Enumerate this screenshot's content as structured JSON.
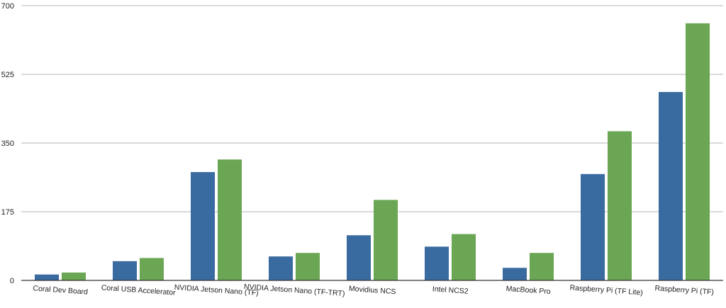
{
  "chart_data": {
    "type": "bar",
    "title": "",
    "xlabel": "",
    "ylabel": "",
    "ylim": [
      0,
      700
    ],
    "yticks": [
      0,
      175,
      350,
      525,
      700
    ],
    "grid": true,
    "legend": "none",
    "categories": [
      "Coral Dev Board",
      "Coral USB Accelerator",
      "NVIDIA Jetson Nano (TF)",
      "NVIDIA Jetson Nano (TF-TRT)",
      "Movidius NCS",
      "Intel NCS2",
      "MacBook Pro",
      "Raspberry Pi (TF Lite)",
      "Raspberry Pi (TF)"
    ],
    "series": [
      {
        "color": "#3a6ba0",
        "values": [
          15,
          49,
          276,
          61,
          115,
          86,
          32,
          271,
          480
        ]
      },
      {
        "color": "#6aa653",
        "values": [
          20,
          57,
          308,
          70,
          205,
          118,
          70,
          380,
          655
        ]
      }
    ]
  }
}
